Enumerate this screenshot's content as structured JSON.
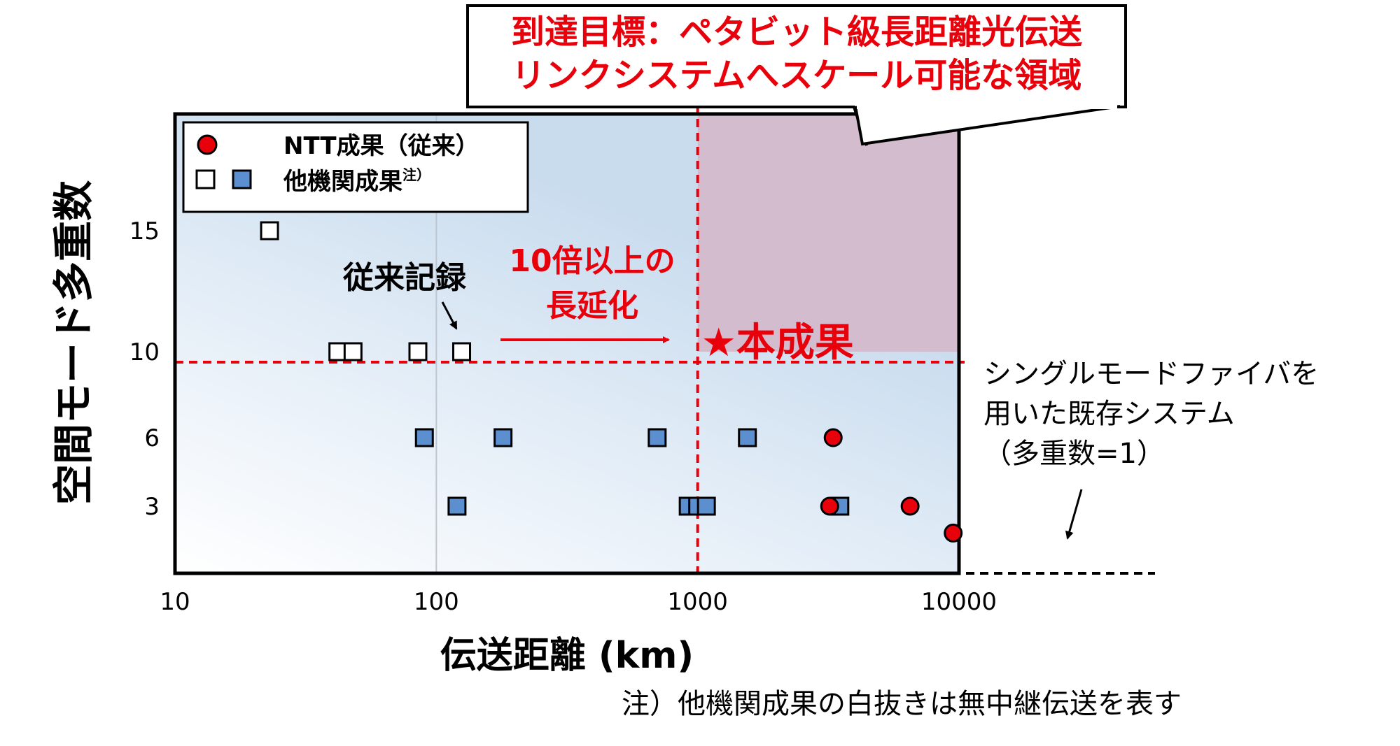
{
  "chart_data": {
    "type": "scatter",
    "x_scale": "log",
    "xlim": [
      10,
      10000
    ],
    "xticks": [
      "10",
      "100",
      "1000",
      "10000"
    ],
    "xlabel": "伝送距離 (km)",
    "ylabel": "空間モード多重数",
    "yticks": [
      "15",
      "10",
      "6",
      "3"
    ],
    "y_tick_values": [
      15,
      10,
      6,
      3
    ],
    "grid": "x at 100",
    "legend": {
      "position": "top-left",
      "entries": [
        {
          "marker": "red-circle",
          "label": "NTT成果（従来）"
        },
        {
          "marker": "open-square+blue-square",
          "label": "他機関成果",
          "superscript": "注）"
        }
      ]
    },
    "series": [
      {
        "label_ref": "legend.entries.0",
        "marker": "red-circle",
        "color": "#e8000b",
        "points": [
          {
            "x": 3300,
            "y": 6
          },
          {
            "x": 3200,
            "y": 3
          },
          {
            "x": 6500,
            "y": 3
          },
          {
            "x": 9500,
            "y": 2.4
          }
        ]
      },
      {
        "label_ref": "legend.entries.1",
        "marker": "open-square",
        "color": "#000000",
        "note": "白抜きは無中継伝送",
        "points": [
          {
            "x": 23,
            "y": 15
          },
          {
            "x": 42,
            "y": 10
          },
          {
            "x": 48,
            "y": 10
          },
          {
            "x": 85,
            "y": 10
          },
          {
            "x": 125,
            "y": 10
          }
        ]
      },
      {
        "label_ref": "legend.entries.1",
        "marker": "blue-square",
        "color": "#5b8fd0",
        "points": [
          {
            "x": 90,
            "y": 6
          },
          {
            "x": 180,
            "y": 6
          },
          {
            "x": 700,
            "y": 6
          },
          {
            "x": 1550,
            "y": 6
          },
          {
            "x": 120,
            "y": 3
          },
          {
            "x": 920,
            "y": 3
          },
          {
            "x": 1000,
            "y": 3
          },
          {
            "x": 1080,
            "y": 3
          },
          {
            "x": 3500,
            "y": 3
          }
        ]
      }
    ],
    "reference_lines": {
      "x": 1000,
      "y": 10
    },
    "target_region": {
      "x_min": 1000,
      "y_min": 10
    },
    "star": {
      "x": 1000,
      "y": 10,
      "label": "★本成果",
      "color": "#e8000b"
    },
    "annotations": {
      "callout_line1": "到達目標：ペタビット級長距離光伝送",
      "callout_line2": "リンクシステムへスケール可能な領域",
      "record": "従来記録",
      "extension_line1": "10倍以上の",
      "extension_line2": "長延化",
      "smf_line1": "シングルモードファイバを",
      "smf_line2": "用いた既存システム",
      "smf_line3": "（多重数=1）",
      "footnote": "注）他機関成果の白抜きは無中継伝送を表す"
    },
    "colors": {
      "accent_red": "#e8000b",
      "blue_fill": "#5b8fd0",
      "region_blue": "#c9dcee",
      "region_purple": "#d3bccd"
    }
  }
}
